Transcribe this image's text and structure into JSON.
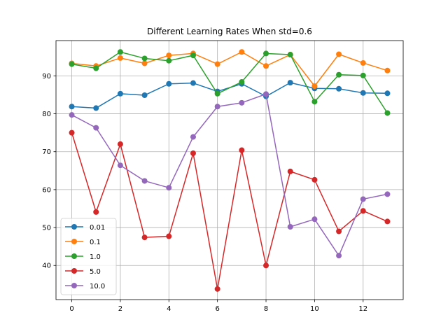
{
  "chart_data": {
    "type": "line",
    "title": "Different Learning Rates When std=0.6",
    "xlabel": "",
    "ylabel": "",
    "xlim": [
      -0.65,
      13.65
    ],
    "ylim": [
      31.0,
      99.3
    ],
    "xticks": [
      0,
      2,
      4,
      6,
      8,
      10,
      12
    ],
    "yticks": [
      40,
      50,
      60,
      70,
      80,
      90
    ],
    "grid": true,
    "legend_position": "lower-left",
    "x": [
      0,
      1,
      2,
      3,
      4,
      5,
      6,
      7,
      8,
      9,
      10,
      11,
      12,
      13
    ],
    "series": [
      {
        "name": "0.01",
        "color": "#1f77b4",
        "values": [
          81.9,
          81.5,
          85.3,
          84.9,
          87.9,
          88.1,
          85.9,
          87.9,
          84.6,
          88.2,
          86.7,
          86.6,
          85.5,
          85.4
        ]
      },
      {
        "name": "0.1",
        "color": "#ff7f0e",
        "values": [
          93.3,
          92.6,
          94.7,
          93.3,
          95.4,
          95.9,
          93.1,
          96.3,
          92.6,
          95.6,
          87.3,
          95.7,
          93.4,
          91.4
        ]
      },
      {
        "name": "1.0",
        "color": "#2ca02c",
        "values": [
          93.1,
          92.0,
          96.3,
          94.6,
          94.0,
          95.4,
          85.3,
          88.4,
          95.9,
          95.6,
          83.2,
          90.3,
          90.1,
          80.2
        ]
      },
      {
        "name": "5.0",
        "color": "#d62728",
        "values": [
          75.0,
          54.1,
          72.0,
          47.4,
          47.7,
          69.6,
          33.8,
          70.4,
          40.0,
          64.8,
          62.6,
          49.0,
          54.4,
          51.6
        ]
      },
      {
        "name": "10.0",
        "color": "#9467bd",
        "values": [
          79.7,
          76.3,
          66.4,
          62.3,
          60.5,
          73.9,
          81.9,
          82.9,
          85.2,
          50.2,
          52.2,
          42.6,
          57.5,
          58.8
        ]
      }
    ]
  }
}
